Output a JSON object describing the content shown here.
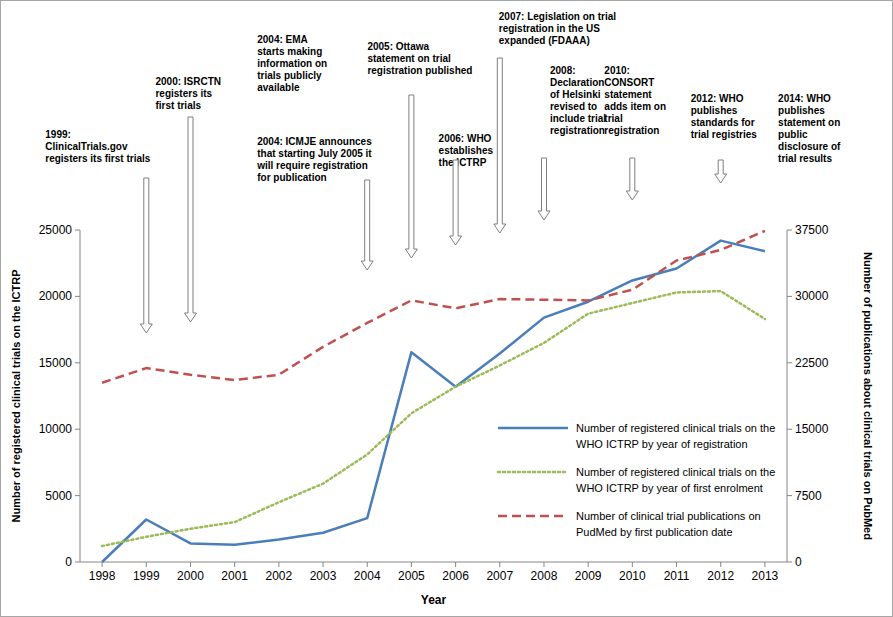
{
  "chart_data": {
    "type": "line",
    "x": [
      1998,
      1999,
      2000,
      2001,
      2002,
      2003,
      2004,
      2005,
      2006,
      2007,
      2008,
      2009,
      2010,
      2011,
      2012,
      2013
    ],
    "xlim": [
      1997.5,
      2013.5
    ],
    "xticks": [
      1998,
      1999,
      2000,
      2001,
      2002,
      2003,
      2004,
      2005,
      2006,
      2007,
      2008,
      2009,
      2010,
      2011,
      2012,
      2013
    ],
    "xlabel": "Year",
    "ylabel": "Number of registered clinical trials on the ICTRP",
    "y2label": "Number of publications about clinical trials on PubMed",
    "ylim": [
      0,
      25000
    ],
    "yticks": [
      0,
      5000,
      10000,
      15000,
      20000,
      25000
    ],
    "y2lim": [
      0,
      37500
    ],
    "y2ticks": [
      0,
      7500,
      15000,
      22500,
      30000,
      37500
    ],
    "grid": false,
    "legend": "lower right",
    "series": [
      {
        "name": "Number of registered clinical trials on the WHO ICTRP by year of registration",
        "color": "#4a7ebb",
        "line_style": "solid",
        "values": [
          0,
          3200,
          1400,
          1300,
          1700,
          2200,
          3300,
          15800,
          13200,
          15700,
          18400,
          19600,
          21200,
          22100,
          24200,
          23400
        ]
      },
      {
        "name": "Number of registered clinical trials on the WHO ICTRP by year of first enrolment",
        "color": "#9bbb59",
        "line_style": "dotted",
        "values": [
          1200,
          1900,
          2500,
          3000,
          4500,
          5900,
          8100,
          11200,
          13200,
          14800,
          16500,
          18700,
          19500,
          20300,
          20400,
          18300
        ]
      },
      {
        "name": "Number of clinical trial publications on PudMed by first publication date",
        "color": "#c0504d",
        "line_style": "dashed",
        "axis": "y2",
        "values": [
          20250,
          21900,
          21150,
          20550,
          21150,
          24300,
          27000,
          29550,
          28650,
          29700,
          29625,
          29550,
          30750,
          34050,
          35250,
          37400
        ]
      }
    ],
    "annotations": [
      {
        "x": 1999,
        "lines": [
          "1999:",
          "ClinicalTrials.gov",
          "registers its first trials"
        ]
      },
      {
        "x": 2000,
        "lines": [
          "2000: ISRCTN",
          "registers its",
          "first trials"
        ]
      },
      {
        "x": 2004,
        "lines": [
          "2004: EMA",
          "starts making",
          "information on",
          "trials publicly",
          "available"
        ]
      },
      {
        "x": 2004,
        "lines": [
          "2004: ICMJE announces",
          "that starting July 2005 it",
          "will require registration",
          "for publication"
        ]
      },
      {
        "x": 2005,
        "lines": [
          "2005: Ottawa",
          "statement on trial",
          "registration published"
        ]
      },
      {
        "x": 2006,
        "lines": [
          "2006: WHO",
          "establishes",
          "the ICTRP"
        ]
      },
      {
        "x": 2007,
        "lines": [
          "2007: Legislation on trial",
          "registration in the US",
          "expanded (FDAAA)"
        ]
      },
      {
        "x": 2008,
        "lines": [
          "2008:",
          "Declaration",
          "of Helsinki",
          "revised to",
          "include trial",
          "registration"
        ]
      },
      {
        "x": 2010,
        "lines": [
          "2010:",
          "CONSORT",
          "statement",
          "adds item on",
          "trial",
          "registration"
        ]
      },
      {
        "x": 2012,
        "lines": [
          "2012: WHO",
          "publishes",
          "standards for",
          "trial registries"
        ]
      },
      {
        "x": 2014,
        "lines": [
          "2014: WHO",
          "publishes",
          "statement on",
          "public",
          "disclosure of",
          "trial results"
        ]
      }
    ]
  }
}
